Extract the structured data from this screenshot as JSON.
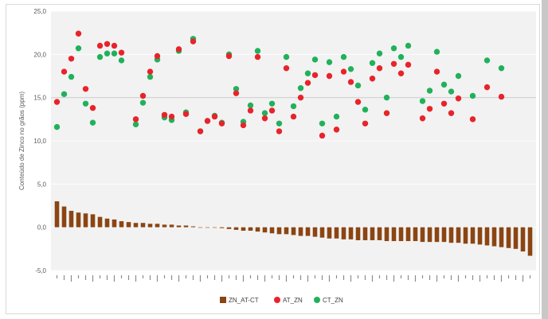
{
  "chart_data": {
    "type": "bar+scatter",
    "ylabel": "Conteúdo de Zinco no grãos (ppm)",
    "ylim": [
      -5,
      25
    ],
    "yticks": [
      "-5,0",
      "0,0",
      "5,0",
      "10,0",
      "15,0",
      "20,0",
      "25,0"
    ],
    "ytick_values": [
      -5,
      0,
      5,
      10,
      15,
      20,
      25
    ],
    "grid": true,
    "reference_line": 15,
    "legend_position": "bottom",
    "colors": {
      "bar": "#8b4513",
      "at": "#e8232a",
      "ct": "#21b15b",
      "plot_bg": "#f2f2f2",
      "ref": "#d9d9d9"
    },
    "series": [
      {
        "name": "ZN_AT-CT",
        "kind": "bar",
        "values": [
          3.0,
          2.4,
          1.9,
          1.7,
          1.6,
          1.5,
          1.2,
          1.0,
          0.9,
          0.7,
          0.6,
          0.5,
          0.5,
          0.4,
          0.4,
          0.3,
          0.3,
          0.2,
          0.2,
          0.1,
          0.0,
          0.0,
          0.0,
          -0.1,
          -0.2,
          -0.3,
          -0.4,
          -0.4,
          -0.5,
          -0.6,
          -0.7,
          -0.8,
          -0.8,
          -0.9,
          -1.0,
          -1.0,
          -1.1,
          -1.2,
          -1.3,
          -1.3,
          -1.4,
          -1.4,
          -1.5,
          -1.5,
          -1.5,
          -1.5,
          -1.6,
          -1.6,
          -1.6,
          -1.6,
          -1.6,
          -1.7,
          -1.7,
          -1.7,
          -1.7,
          -1.8,
          -1.8,
          -1.9,
          -1.9,
          -2.0,
          -2.1,
          -2.2,
          -2.3,
          -2.4,
          -2.5,
          -2.8,
          -3.3
        ]
      },
      {
        "name": "AT_ZN",
        "kind": "scatter",
        "values": [
          14.5,
          18.0,
          19.5,
          22.4,
          16.0,
          13.8,
          21.0,
          21.2,
          21.0,
          20.2,
          12.5,
          15.2,
          18.0,
          19.8,
          13.0,
          12.8,
          20.6,
          13.1,
          21.5,
          11.1,
          12.3,
          12.8,
          12.0,
          19.8,
          15.5,
          11.8,
          13.5,
          19.7,
          12.6,
          13.5,
          11.1,
          18.4,
          12.8,
          15.0,
          16.7,
          17.6,
          10.6,
          17.5,
          11.3,
          18.0,
          16.8,
          14.5,
          12.0,
          17.2,
          18.4,
          13.2,
          18.9,
          17.8,
          18.8,
          12.6,
          13.7,
          18.0,
          14.3,
          13.2,
          14.9,
          12.5,
          16.2,
          15.1
        ]
      },
      {
        "name": "CT_ZN",
        "kind": "scatter",
        "values": [
          11.6,
          15.4,
          17.4,
          20.7,
          14.3,
          12.1,
          19.7,
          20.1,
          20.1,
          19.3,
          11.9,
          14.4,
          17.4,
          19.4,
          12.7,
          12.4,
          20.4,
          13.3,
          21.8,
          11.1,
          12.3,
          12.9,
          12.1,
          20.0,
          16.0,
          12.2,
          14.1,
          20.4,
          13.2,
          14.3,
          12.0,
          19.7,
          14.0,
          16.1,
          17.8,
          19.4,
          12.0,
          19.1,
          12.8,
          19.7,
          18.3,
          16.4,
          13.6,
          19.0,
          20.1,
          15.0,
          20.7,
          19.7,
          21.0,
          14.6,
          15.8,
          20.3,
          16.5,
          15.7,
          17.5,
          15.2,
          19.3,
          18.4
        ]
      }
    ],
    "scatter_x_slots": [
      0,
      1,
      2,
      3,
      4,
      5,
      6,
      7,
      8,
      9,
      11,
      12,
      13,
      14,
      15,
      16,
      17,
      18,
      19,
      20,
      21,
      22,
      23,
      24,
      25,
      26,
      27,
      28,
      29,
      30,
      31,
      32,
      33,
      34,
      35,
      36,
      37,
      38,
      39,
      40,
      41,
      42,
      43,
      44,
      45,
      46,
      47,
      48,
      49,
      51,
      52,
      53,
      54,
      55,
      56,
      58,
      60,
      62
    ]
  }
}
